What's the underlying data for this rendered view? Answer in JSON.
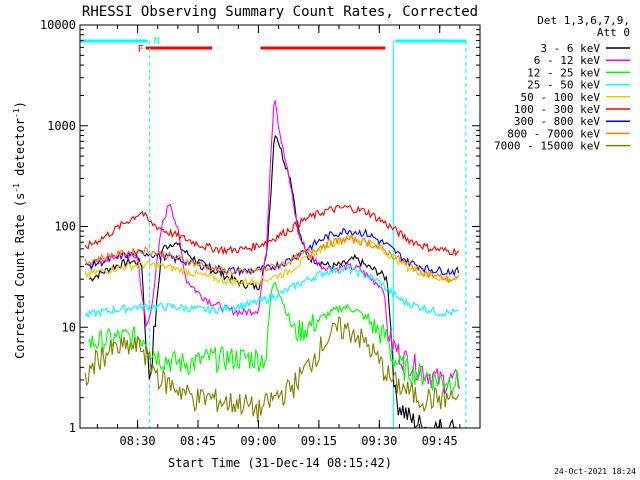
{
  "chart_data": {
    "type": "line",
    "title": "RHESSI Observing Summary Count Rates, Corrected",
    "xlabel": "Start Time (31-Dec-14 08:15:42)",
    "ylabel_main": "Corrected Count Rate (s",
    "ylabel_sup1": "-1",
    "ylabel_mid": " detector",
    "ylabel_sup2": "-1",
    "ylabel_end": ")",
    "y_scale": "log",
    "ylim": [
      1,
      10000
    ],
    "xlim": [
      "08:15:42",
      "09:55:00"
    ],
    "x_ticks": [
      "08:30",
      "08:45",
      "09:00",
      "09:15",
      "09:30",
      "09:45"
    ],
    "y_ticks": [
      "1",
      "10",
      "100",
      "1000",
      "10000"
    ],
    "legend_header": [
      "Det 1,3,6,7,9,",
      "Att 0"
    ],
    "legend_position": "right",
    "footer_timestamp": "24-Oct-2021 18:24",
    "flags": {
      "F_label": "F",
      "N_label": "N",
      "flare_color": "#ff0000",
      "night_color": "#00ffff",
      "flare_intervals": [
        [
          "08:32:00",
          "08:48:30"
        ],
        [
          "09:00:30",
          "09:31:30"
        ]
      ],
      "night_intervals": [
        [
          "08:15:42",
          "08:32:30"
        ],
        [
          "09:34:00",
          "09:51:30"
        ]
      ],
      "night_boundaries": [
        "08:15:42",
        "08:33:00",
        "09:33:30",
        "09:51:30"
      ]
    },
    "series": [
      {
        "name": "3 - 6 keV",
        "color": "#000000",
        "x": [
          "08:18",
          "08:24",
          "08:28",
          "08:31",
          "08:32",
          "08:33",
          "08:36",
          "08:39",
          "08:42",
          "08:45",
          "08:48",
          "08:52",
          "08:56",
          "09:00",
          "09:02",
          "09:03",
          "09:04",
          "09:05",
          "09:06",
          "09:08",
          "09:10",
          "09:12",
          "09:15",
          "09:18",
          "09:21",
          "09:24",
          "09:27",
          "09:30",
          "09:32",
          "09:33",
          "09:34",
          "09:36",
          "09:38",
          "09:42",
          "09:46",
          "09:50"
        ],
        "y": [
          30,
          40,
          45,
          44,
          8,
          3,
          60,
          70,
          55,
          45,
          38,
          32,
          27,
          25,
          50,
          200,
          900,
          700,
          500,
          300,
          90,
          50,
          45,
          40,
          42,
          48,
          40,
          35,
          30,
          8,
          2,
          1.5,
          1.2,
          1,
          1,
          1
        ]
      },
      {
        "name": "6 - 12 keV",
        "color": "#ff00ff",
        "x": [
          "08:18",
          "08:22",
          "08:26",
          "08:30",
          "08:32",
          "08:33",
          "08:36",
          "08:38",
          "08:40",
          "08:42",
          "08:45",
          "08:48",
          "08:52",
          "08:56",
          "09:00",
          "09:02",
          "09:03",
          "09:04",
          "09:05",
          "09:06",
          "09:08",
          "09:10",
          "09:13",
          "09:16",
          "09:19",
          "09:22",
          "09:25",
          "09:28",
          "09:31",
          "09:32",
          "09:33",
          "09:36",
          "09:40",
          "09:45",
          "09:50"
        ],
        "y": [
          40,
          48,
          52,
          50,
          10,
          12,
          100,
          180,
          90,
          30,
          22,
          18,
          15,
          14,
          15,
          60,
          500,
          2200,
          1000,
          600,
          250,
          80,
          50,
          40,
          38,
          40,
          38,
          30,
          25,
          10,
          7,
          5,
          4,
          3,
          3
        ]
      },
      {
        "name": "12 - 25 keV",
        "color": "#00ff00",
        "x": [
          "08:18",
          "08:22",
          "08:26",
          "08:30",
          "08:32",
          "08:33",
          "08:36",
          "08:40",
          "08:44",
          "08:48",
          "08:52",
          "08:56",
          "09:00",
          "09:02",
          "09:03",
          "09:04",
          "09:06",
          "09:09",
          "09:12",
          "09:15",
          "09:18",
          "09:21",
          "09:24",
          "09:27",
          "09:30",
          "09:32",
          "09:33",
          "09:36",
          "09:40",
          "09:45",
          "09:50"
        ],
        "y": [
          7,
          7.5,
          8,
          8,
          8,
          6,
          5,
          4.5,
          4.5,
          5,
          5,
          5,
          5,
          5,
          20,
          30,
          18,
          9,
          10,
          12,
          14,
          16,
          15,
          12,
          9,
          8,
          5,
          4,
          3.5,
          3,
          3
        ]
      },
      {
        "name": "25 - 50 keV",
        "color": "#00ffff",
        "x": [
          "08:17",
          "08:20",
          "08:25",
          "08:30",
          "08:32",
          "08:34",
          "08:38",
          "08:42",
          "08:46",
          "08:50",
          "08:54",
          "08:58",
          "09:02",
          "09:06",
          "09:10",
          "09:14",
          "09:18",
          "09:22",
          "09:26",
          "09:30",
          "09:33",
          "09:36",
          "09:40",
          "09:45",
          "09:50"
        ],
        "y": [
          13,
          14,
          15,
          16,
          16,
          16,
          16,
          15.5,
          15,
          15,
          16,
          17,
          19,
          22,
          27,
          32,
          37,
          38,
          34,
          28,
          22,
          18,
          16,
          14,
          14
        ]
      },
      {
        "name": "50 - 100 keV",
        "color": "#e8c800",
        "x": [
          "08:17",
          "08:22",
          "08:27",
          "08:32",
          "08:37",
          "08:42",
          "08:47",
          "08:52",
          "08:57",
          "09:02",
          "09:07",
          "09:12",
          "09:17",
          "09:22",
          "09:27",
          "09:32",
          "09:37",
          "09:42",
          "09:47",
          "09:50"
        ],
        "y": [
          33,
          37,
          40,
          42,
          40,
          36,
          32,
          29,
          28,
          30,
          35,
          48,
          65,
          78,
          72,
          55,
          40,
          33,
          30,
          30
        ]
      },
      {
        "name": "100 - 300 keV",
        "color": "#ff0000",
        "x": [
          "08:17",
          "08:22",
          "08:27",
          "08:31",
          "08:33",
          "08:37",
          "08:42",
          "08:47",
          "08:52",
          "08:57",
          "09:02",
          "09:07",
          "09:12",
          "09:17",
          "09:22",
          "09:27",
          "09:32",
          "09:37",
          "09:42",
          "09:47",
          "09:50"
        ],
        "y": [
          62,
          80,
          110,
          140,
          110,
          90,
          75,
          63,
          58,
          60,
          70,
          90,
          120,
          145,
          155,
          140,
          105,
          75,
          62,
          57,
          57
        ]
      },
      {
        "name": "300 - 800 keV",
        "color": "#0000ff",
        "x": [
          "08:17",
          "08:22",
          "08:27",
          "08:32",
          "08:37",
          "08:42",
          "08:47",
          "08:52",
          "08:57",
          "09:02",
          "09:07",
          "09:12",
          "09:17",
          "09:22",
          "09:27",
          "09:32",
          "09:37",
          "09:42",
          "09:47",
          "09:50"
        ],
        "y": [
          40,
          46,
          52,
          55,
          50,
          45,
          40,
          37,
          36,
          38,
          45,
          60,
          80,
          92,
          85,
          65,
          45,
          38,
          36,
          36
        ]
      },
      {
        "name": "800 - 7000 keV",
        "color": "#ff8000",
        "x": [
          "08:17",
          "08:22",
          "08:27",
          "08:32",
          "08:37",
          "08:42",
          "08:47",
          "08:52",
          "08:57",
          "09:02",
          "09:07",
          "09:12",
          "09:17",
          "09:22",
          "09:27",
          "09:32",
          "09:37",
          "09:42",
          "09:47",
          "09:50"
        ],
        "y": [
          44,
          50,
          55,
          58,
          52,
          46,
          40,
          36,
          35,
          38,
          44,
          55,
          68,
          75,
          70,
          56,
          42,
          34,
          30,
          30
        ]
      },
      {
        "name": "7000 - 15000 keV",
        "color": "#808000",
        "x": [
          "08:17",
          "08:20",
          "08:24",
          "08:28",
          "08:31",
          "08:33",
          "08:36",
          "08:40",
          "08:44",
          "08:48",
          "08:52",
          "08:56",
          "09:00",
          "09:04",
          "09:08",
          "09:12",
          "09:16",
          "09:20",
          "09:24",
          "09:28",
          "09:31",
          "09:33",
          "09:36",
          "09:40",
          "09:45",
          "09:50"
        ],
        "y": [
          3,
          5,
          6,
          6.5,
          6.5,
          4.5,
          3,
          2.5,
          2,
          2,
          1.8,
          1.8,
          1.5,
          2,
          2.5,
          4,
          7,
          10,
          9,
          6,
          4,
          3,
          2.5,
          2,
          2,
          2
        ]
      }
    ]
  }
}
